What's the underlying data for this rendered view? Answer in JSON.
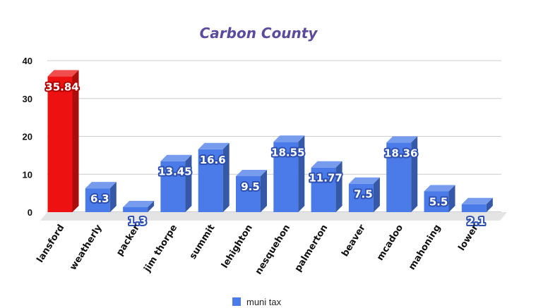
{
  "chart_data": {
    "type": "bar",
    "title": "Carbon County",
    "xlabel": "",
    "ylabel": "",
    "categories": [
      "lansford",
      "weatherly",
      "packer",
      "jim thorpe",
      "summit",
      "lehighton",
      "nesquehon",
      "palmerton",
      "beaver",
      "mcadoo",
      "mahoning",
      "lower"
    ],
    "series": [
      {
        "name": "muni tax",
        "values": [
          35.84,
          6.3,
          1.3,
          13.45,
          16.6,
          9.5,
          18.55,
          11.77,
          7.5,
          18.36,
          5.5,
          2.1
        ],
        "labels": [
          "35.84",
          "6.3",
          "1.3",
          "13.45",
          "16.6",
          "9.5",
          "18.55",
          "11.77",
          "7.5",
          "18.36",
          "5.5",
          "2.1"
        ],
        "color": "#4a7be8",
        "highlight_color": "#ee1111",
        "highlight_index": 0
      }
    ],
    "ylim": [
      0,
      40
    ],
    "yticks": [
      "0",
      "10",
      "20",
      "30",
      "40"
    ],
    "grid": true,
    "legend_position": "bottom"
  }
}
